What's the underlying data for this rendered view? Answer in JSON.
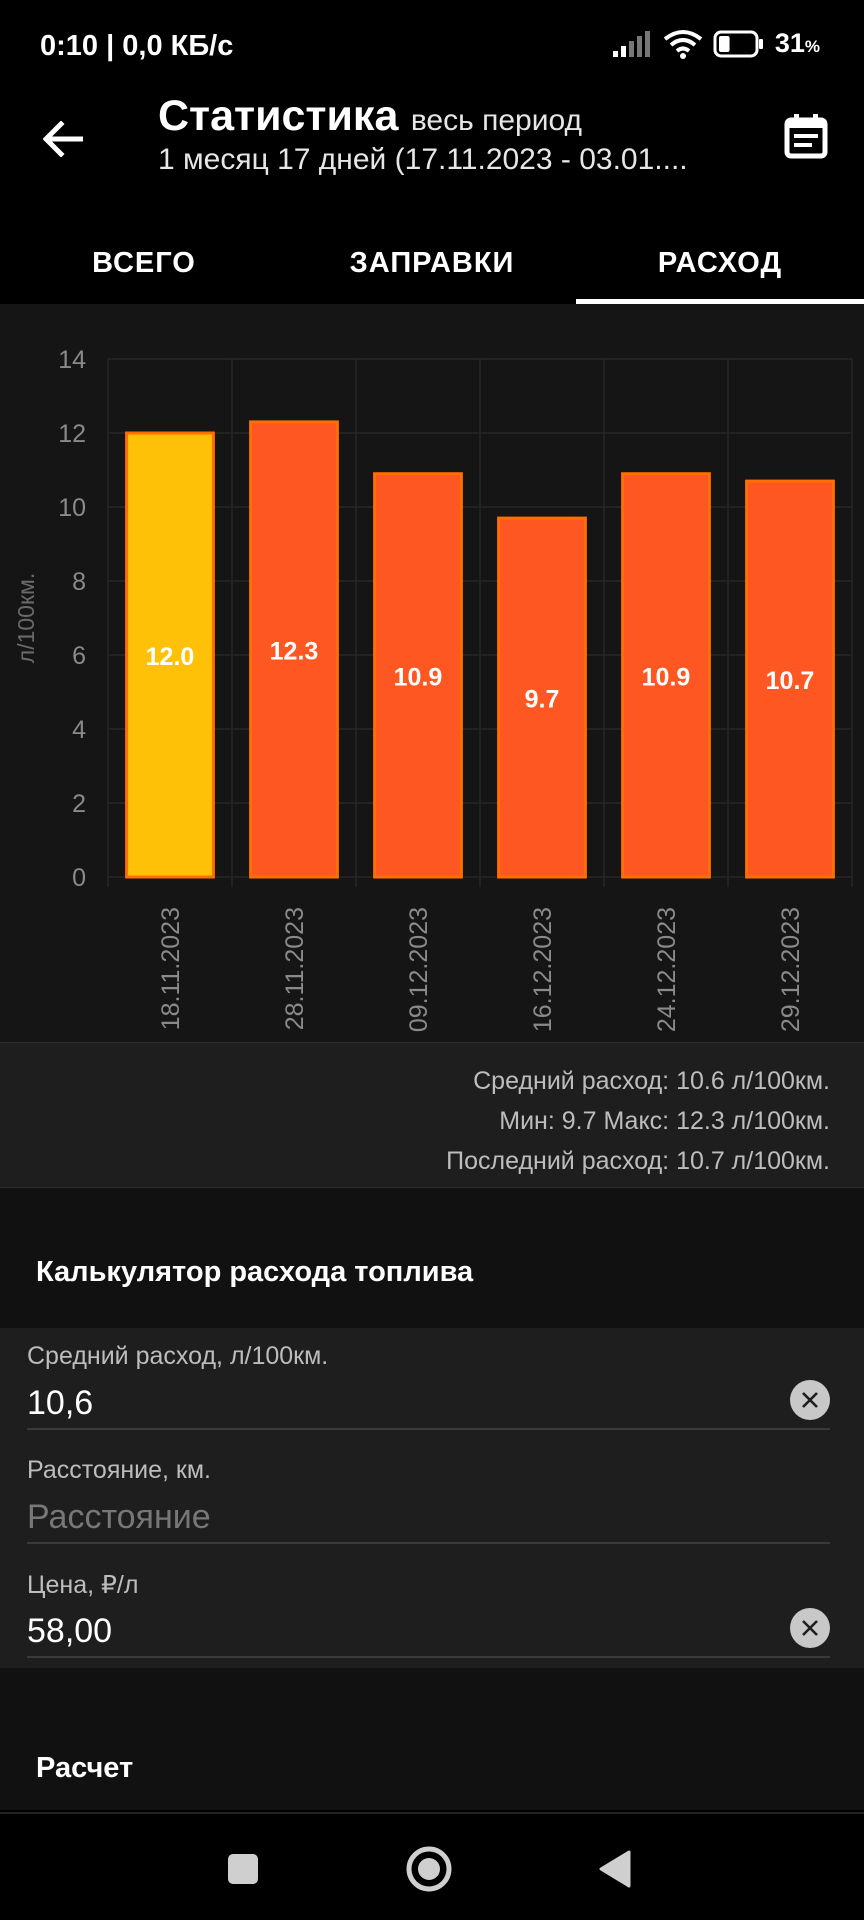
{
  "status_bar": {
    "time_speed": "0:10 | 0,0 КБ/с",
    "battery_percent": "31",
    "battery_unit": "%",
    "battery_level": 0.31,
    "icons": [
      "signal-icon",
      "wifi-icon",
      "battery-icon"
    ]
  },
  "app_bar": {
    "title": "Статистика",
    "period": "весь период",
    "subtitle": "1 месяц 17 дней (17.11.2023 - 03.01....",
    "back_icon": "arrow-left-icon",
    "calendar_icon": "calendar-icon"
  },
  "tabs": [
    {
      "label": "ВСЕГО",
      "active": false
    },
    {
      "label": "ЗАПРАВКИ",
      "active": false
    },
    {
      "label": "РАСХОД",
      "active": true
    }
  ],
  "chart_data": {
    "type": "bar",
    "ylabel": "л/100км.",
    "ylim": [
      0,
      14
    ],
    "yticks": [
      0,
      2,
      4,
      6,
      8,
      10,
      12,
      14
    ],
    "categories": [
      "18.11.2023",
      "28.11.2023",
      "09.12.2023",
      "16.12.2023",
      "24.12.2023",
      "29.12.2023"
    ],
    "values": [
      12.0,
      12.3,
      10.9,
      9.7,
      10.9,
      10.7
    ],
    "value_labels": [
      "12.0",
      "12.3",
      "10.9",
      "9.7",
      "10.9",
      "10.7"
    ],
    "highlight_index": 0,
    "colors": {
      "highlight": "#FFC107",
      "bar": "#FF5722",
      "bar_border": "#FF6F00",
      "grid": "#262626",
      "tick_text": "#8a8a8a"
    }
  },
  "summary": {
    "avg": "Средний расход: 10.6 л/100км.",
    "minmax": "Мин: 9.7 Макс: 12.3 л/100км.",
    "last": "Последний расход: 10.7 л/100км."
  },
  "calculator": {
    "title": "Калькулятор расхода топлива",
    "fields": [
      {
        "label": "Средний расход, л/100км.",
        "value": "10,6",
        "placeholder": ""
      },
      {
        "label": "Расстояние, км.",
        "value": "",
        "placeholder": "Расстояние"
      },
      {
        "label": "Цена, ₽/л",
        "value": "58,00",
        "placeholder": ""
      }
    ]
  },
  "result": {
    "title": "Расчет"
  },
  "nav": {
    "icons": [
      "recents-square-icon",
      "home-circle-icon",
      "back-triangle-icon"
    ]
  }
}
